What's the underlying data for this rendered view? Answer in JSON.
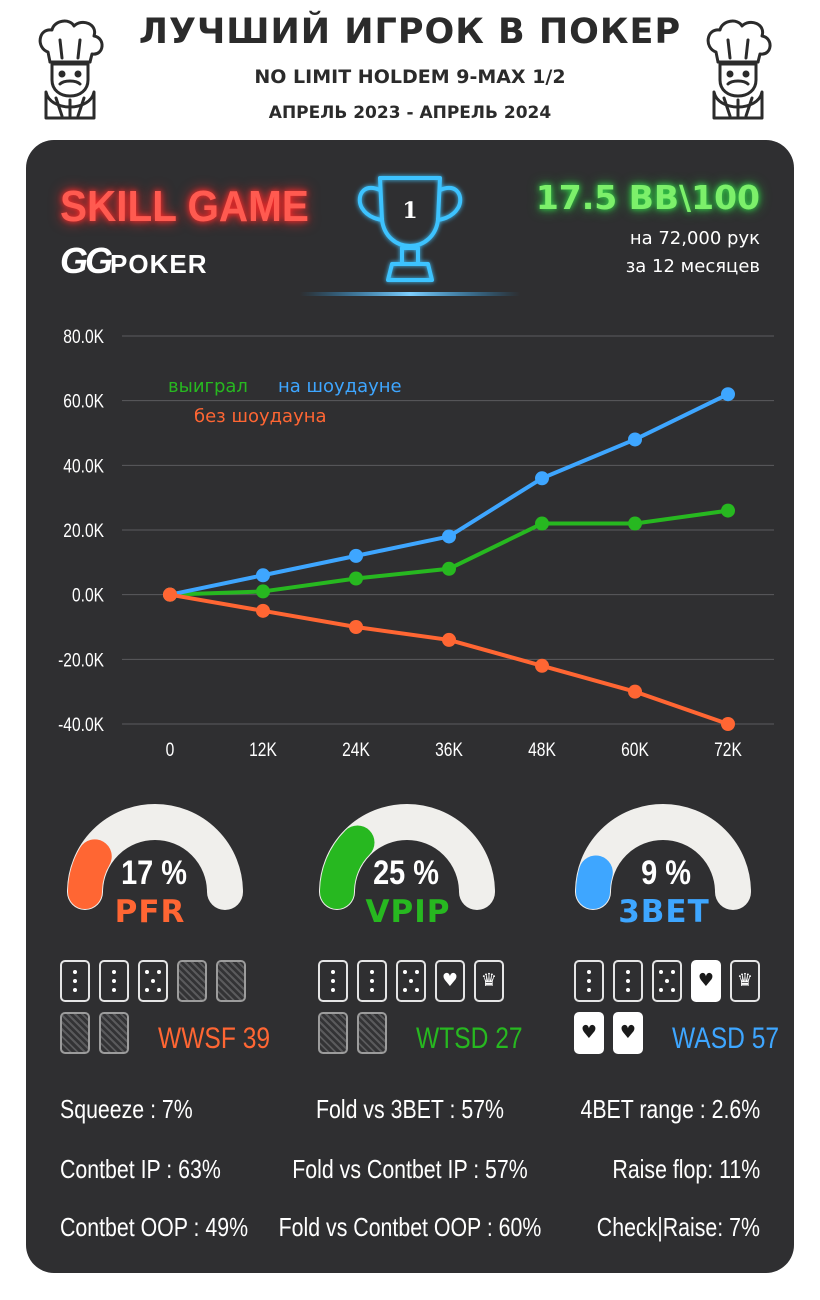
{
  "header": {
    "title": "ЛУЧШИЙ ИГРОК В ПОКЕР",
    "subtitle": "NO LIMIT HOLDEM 9-MAX 1/2",
    "period": "АПРЕЛЬ 2023 - АПРЕЛЬ 2024"
  },
  "badge": {
    "skill": "SKILL GAME",
    "logo_gg": "GG",
    "logo_poker": "POKER",
    "trophy_rank": "1"
  },
  "summary": {
    "winrate": "17.5 BB\\100",
    "hands": "на 72,000 рук",
    "months": "за  12 месяцев"
  },
  "colors": {
    "showdown": "#3ea6ff",
    "total": "#27b820",
    "nonshowdown": "#ff6633",
    "panel": "#2f2f31"
  },
  "chart_data": {
    "type": "line",
    "x": [
      "0",
      "12K",
      "24K",
      "36K",
      "48K",
      "60K",
      "72K"
    ],
    "y_ticks": [
      "80.0K",
      "60.0K",
      "40.0K",
      "20.0K",
      "0.0K",
      "-20.0K",
      "-40.0K"
    ],
    "ylim": [
      -40000,
      80000
    ],
    "grid": true,
    "legend_position": "top-left",
    "series": [
      {
        "name": "выиграл",
        "color": "#27b820",
        "values": [
          0,
          1000,
          5000,
          8000,
          22000,
          22000,
          26000
        ]
      },
      {
        "name": "на шоудауне",
        "color": "#3ea6ff",
        "values": [
          0,
          6000,
          12000,
          18000,
          36000,
          48000,
          62000
        ]
      },
      {
        "name": "без шоудауна",
        "color": "#ff6633",
        "values": [
          0,
          -5000,
          -10000,
          -14000,
          -22000,
          -30000,
          -40000
        ]
      }
    ]
  },
  "gauges": [
    {
      "value": "17 %",
      "label": "PFR",
      "fraction": 0.17,
      "color": "#ff6633"
    },
    {
      "value": "25 %",
      "label": "VPIP",
      "fraction": 0.25,
      "color": "#27b820"
    },
    {
      "value": "9 %",
      "label": "3BET",
      "fraction": 0.09,
      "color": "#3ea6ff"
    }
  ],
  "card_stats": [
    {
      "text": "WWSF 39",
      "color": "#ff6633"
    },
    {
      "text": "WTSD 27",
      "color": "#27b820"
    },
    {
      "text": "WASD 57",
      "color": "#3ea6ff"
    }
  ],
  "card_icons": {
    "heart": "♥",
    "crown": "♛"
  },
  "stats": {
    "left": [
      "Squeeze : 7%",
      "Contbet IP : 63%",
      "Contbet OOP : 49%"
    ],
    "center": [
      "Fold vs 3BET : 57%",
      "Fold vs Contbet IP : 57%",
      "Fold vs Contbet OOP : 60%"
    ],
    "right": [
      "4BET range : 2.6%",
      "Raise flop: 11%",
      "Check|Raise: 7%"
    ]
  }
}
